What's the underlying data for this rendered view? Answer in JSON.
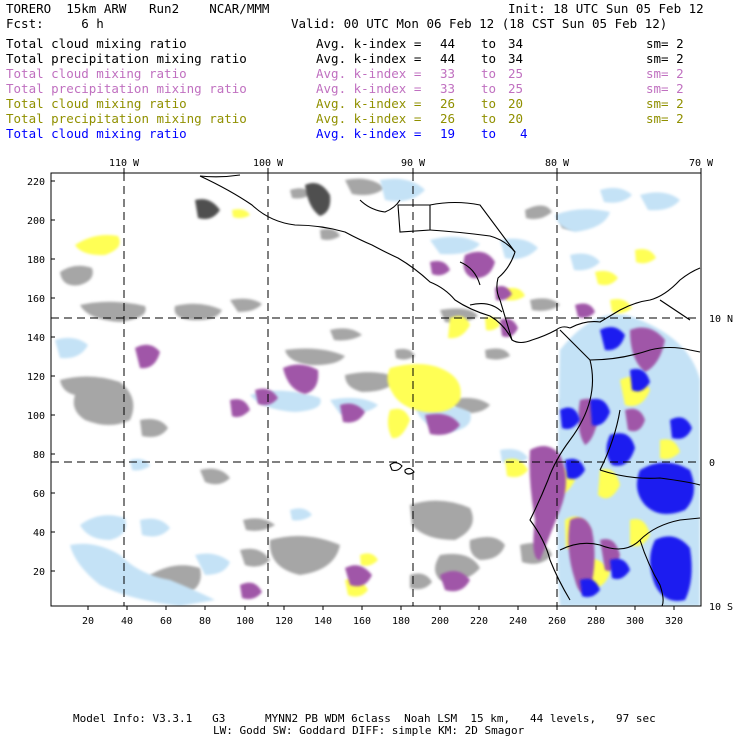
{
  "header": {
    "line1_left": "TORERO  15km ARW   Run2    NCAR/MMM",
    "line1_right": "Init: 18 UTC Sun 05 Feb 12",
    "line2_left": "Fcst:     6 h",
    "line2_right": "Valid: 00 UTC Mon 06 Feb 12 (18 CST Sun 05 Feb 12)"
  },
  "fields": [
    {
      "name": "Total cloud mixing ratio",
      "avg": "Avg. k-index =",
      "from": "44",
      "to": "to",
      "hi": "34",
      "sm": "sm= 2",
      "color": "#000000"
    },
    {
      "name": "Total precipitation mixing ratio",
      "avg": "Avg. k-index =",
      "from": "44",
      "to": "to",
      "hi": "34",
      "sm": "sm= 2",
      "color": "#000000"
    },
    {
      "name": "Total cloud mixing ratio",
      "avg": "Avg. k-index =",
      "from": "33",
      "to": "to",
      "hi": "25",
      "sm": "sm= 2",
      "color": "#c070c0"
    },
    {
      "name": "Total precipitation mixing ratio",
      "avg": "Avg. k-index =",
      "from": "33",
      "to": "to",
      "hi": "25",
      "sm": "sm= 2",
      "color": "#c070c0"
    },
    {
      "name": "Total cloud mixing ratio",
      "avg": "Avg. k-index =",
      "from": "26",
      "to": "to",
      "hi": "20",
      "sm": "sm= 2",
      "color": "#909000"
    },
    {
      "name": "Total precipitation mixing ratio",
      "avg": "Avg. k-index =",
      "from": "26",
      "to": "to",
      "hi": "20",
      "sm": "sm= 2",
      "color": "#909000"
    },
    {
      "name": "Total cloud mixing ratio",
      "avg": "Avg. k-index =",
      "from": "19",
      "to": "to",
      "hi": "4",
      "sm": "",
      "color": "#0000ff"
    }
  ],
  "map": {
    "lon_labels": [
      "110 W",
      "100 W",
      "90 W",
      "80 W",
      "70 W"
    ],
    "lat_labels": [
      "10 N",
      "0",
      "10 S"
    ],
    "x_ticks": [
      "20",
      "40",
      "60",
      "80",
      "100",
      "120",
      "140",
      "160",
      "180",
      "200",
      "220",
      "240",
      "260",
      "280",
      "300",
      "320"
    ],
    "y_ticks": [
      "220",
      "200",
      "180",
      "160",
      "140",
      "120",
      "100",
      "80",
      "60",
      "40",
      "20"
    ],
    "colors": {
      "gray": "#a6a6a6",
      "purple": "#a056a8",
      "yellow": "#ffff55",
      "lightblue": "#c4e2f6",
      "blue": "#1a1af0",
      "darkgray": "#505050"
    }
  },
  "footer": {
    "line1": "Model Info: V3.3.1   G3      MYNN2 PB WDM 6class  Noah LSM  15 km,   44 levels,   97 sec",
    "line2": "LW: Godd SW: Goddard DIFF: simple KM: 2D Smagor"
  }
}
